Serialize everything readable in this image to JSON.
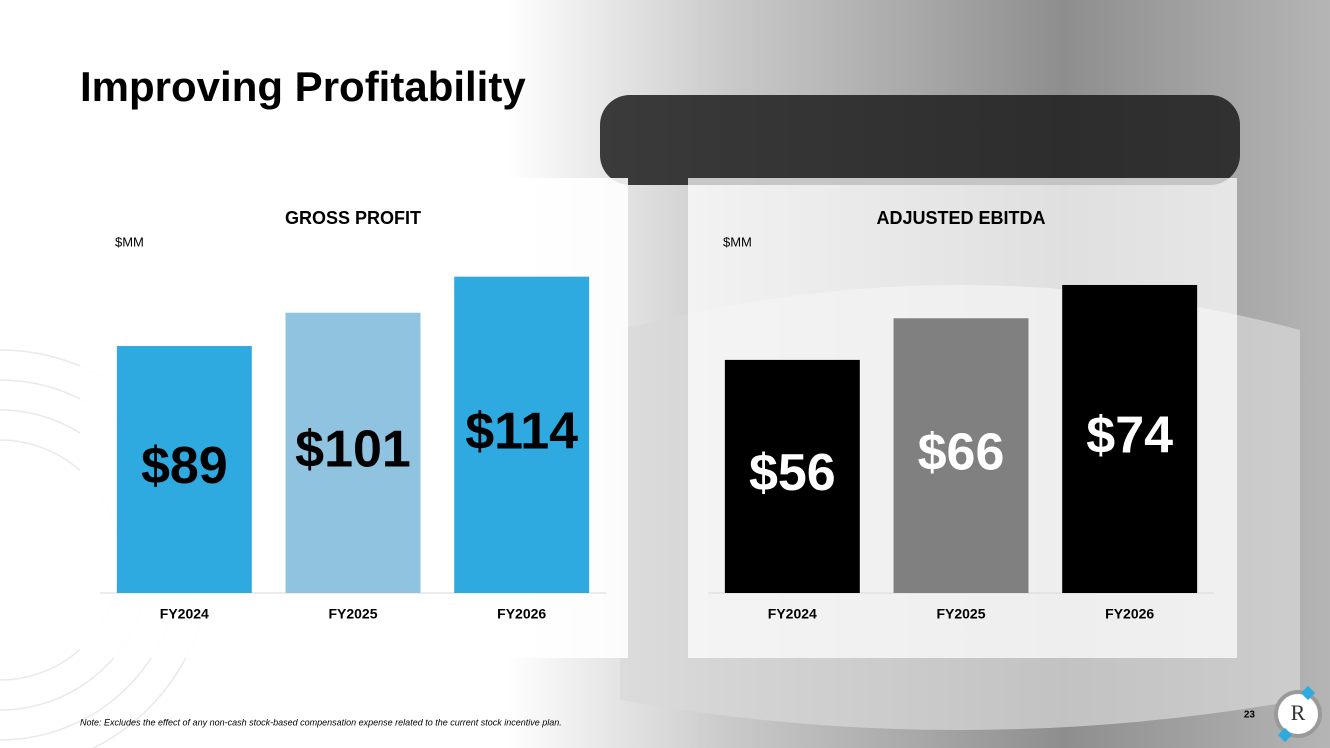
{
  "title": "Improving Profitability",
  "chart_data": [
    {
      "type": "bar",
      "title": "GROSS PROFIT",
      "y_label": "$MM",
      "categories": [
        "FY2024",
        "FY2025",
        "FY2026"
      ],
      "values": [
        89,
        101,
        114
      ],
      "value_labels": [
        "$89",
        "$101",
        "$114"
      ],
      "colors": [
        "#2eaae1",
        "#8fc3e0",
        "#2eaae1"
      ],
      "label_color": "#000000",
      "ylim": [
        0,
        120
      ]
    },
    {
      "type": "bar",
      "title": "ADJUSTED EBITDA",
      "y_label": "$MM",
      "categories": [
        "FY2024",
        "FY2025",
        "FY2026"
      ],
      "values": [
        56,
        66,
        74
      ],
      "value_labels": [
        "$56",
        "$66",
        "$74"
      ],
      "colors": [
        "#000000",
        "#808080",
        "#000000"
      ],
      "label_color": "#ffffff",
      "ylim": [
        0,
        80
      ]
    }
  ],
  "note": "Note: Excludes the effect of any non-cash stock-based compensation expense related to the current stock incentive plan.",
  "page_number": "23"
}
